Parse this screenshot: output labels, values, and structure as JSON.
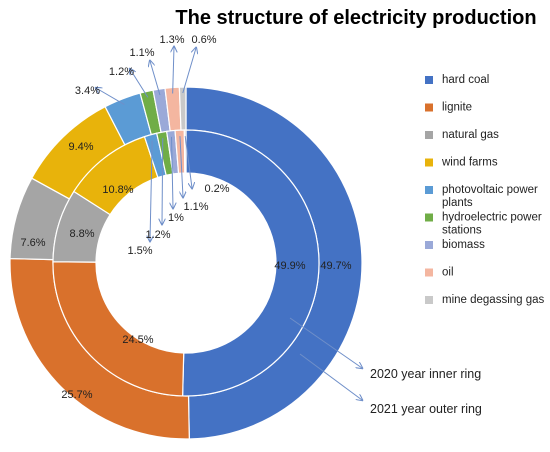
{
  "chart_data": {
    "type": "pie",
    "subtype": "double-donut",
    "title": "The structure of electricity production",
    "categories": [
      "hard coal",
      "lignite",
      "natural gas",
      "wind farms",
      "photovoltaic power plants",
      "hydroelectric power stations",
      "biomass",
      "oil",
      "mine degassing gas"
    ],
    "colors": [
      "#4472c4",
      "#d9712c",
      "#a5a5a5",
      "#e8b30b",
      "#5b9bd5",
      "#70ad47",
      "#9aa9d8",
      "#f4b6a0",
      "#c9c9c9"
    ],
    "series": [
      {
        "name": "2020 year inner ring",
        "values": [
          49.9,
          24.5,
          8.8,
          10.8,
          1.5,
          1.2,
          1,
          1.1,
          0.2
        ],
        "labels": [
          "49.9%",
          "24.5%",
          "8.8%",
          "10.8%",
          "1.5%",
          "1.2%",
          "1%",
          "1.1%",
          "0.2%"
        ]
      },
      {
        "name": "2021 year outer ring",
        "values": [
          49.7,
          25.7,
          7.6,
          9.4,
          3.4,
          1.2,
          1.1,
          1.3,
          0.6
        ],
        "labels": [
          "49.7%",
          "25.7%",
          "7.6%",
          "9.4%",
          "3.4%",
          "1.2%",
          "1.1%",
          "1.3%",
          "0.6%"
        ]
      }
    ],
    "legend": {
      "position": "right",
      "entries": [
        "hard coal",
        "lignite",
        "natural gas",
        "wind farms",
        "photovoltaic power plants",
        "hydroelectric power stations",
        "biomass",
        "oil",
        "mine degassing gas"
      ]
    },
    "annotations": [
      "2020 year inner ring",
      "2021 year outer ring"
    ]
  }
}
